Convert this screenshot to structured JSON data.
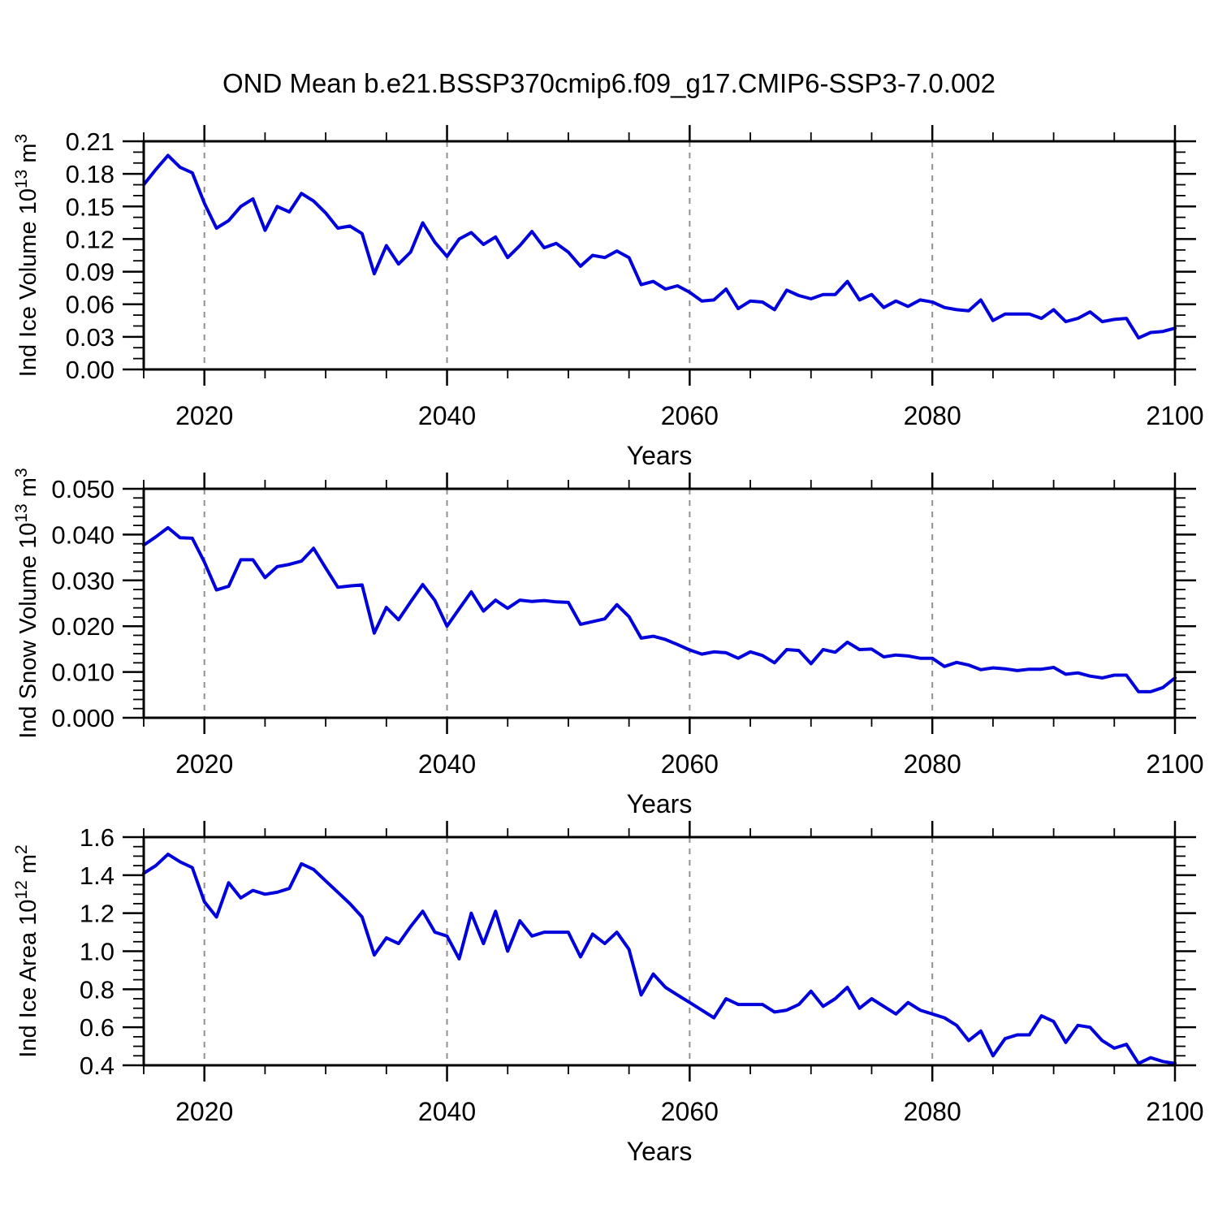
{
  "page": {
    "title": "OND Mean b.e21.BSSP370cmip6.f09_g17.CMIP6-SSP3-7.0.002",
    "background": "#ffffff"
  },
  "style": {
    "line_color": "#0000dd",
    "grid_color": "#909090",
    "axis_color": "#000000",
    "text_color": "#000000"
  },
  "chart_data": [
    {
      "type": "line",
      "id": "ice-volume",
      "xlabel": "Years",
      "ylabel": {
        "base": "Ind Ice Volume 10",
        "sup": "13",
        "unit": " m",
        "sup2": "3"
      },
      "x_start": 2015,
      "x_step": 1,
      "xlim": [
        2015,
        2100
      ],
      "xticks_major": [
        2020,
        2040,
        2060,
        2080,
        2100
      ],
      "xtick_labels": [
        "2020",
        "2040",
        "2060",
        "2080",
        "2100"
      ],
      "xtick_minor_step": 5,
      "grid_years": [
        2020,
        2040,
        2060,
        2080
      ],
      "ylim": [
        0.0,
        0.21
      ],
      "ytick_values": [
        0.0,
        0.03,
        0.06,
        0.09,
        0.12,
        0.15,
        0.18,
        0.21
      ],
      "ytick_labels": [
        "0.00",
        "0.03",
        "0.06",
        "0.09",
        "0.12",
        "0.15",
        "0.18",
        "0.21"
      ],
      "ytick_minor_step": 0.01,
      "grid": "vertical-dashed",
      "legend": "none",
      "series": [
        {
          "name": "Ind Ice Volume",
          "color": "#0000dd",
          "values": [
            0.17,
            0.184,
            0.197,
            0.186,
            0.181,
            0.153,
            0.13,
            0.137,
            0.15,
            0.157,
            0.128,
            0.15,
            0.145,
            0.162,
            0.155,
            0.144,
            0.13,
            0.132,
            0.125,
            0.088,
            0.114,
            0.097,
            0.108,
            0.135,
            0.117,
            0.104,
            0.12,
            0.126,
            0.115,
            0.122,
            0.103,
            0.114,
            0.127,
            0.112,
            0.116,
            0.108,
            0.095,
            0.105,
            0.103,
            0.109,
            0.103,
            0.078,
            0.081,
            0.074,
            0.077,
            0.071,
            0.063,
            0.064,
            0.074,
            0.056,
            0.063,
            0.062,
            0.055,
            0.073,
            0.068,
            0.065,
            0.069,
            0.069,
            0.081,
            0.064,
            0.069,
            0.057,
            0.063,
            0.058,
            0.064,
            0.062,
            0.057,
            0.055,
            0.054,
            0.064,
            0.045,
            0.051,
            0.051,
            0.051,
            0.047,
            0.055,
            0.044,
            0.047,
            0.053,
            0.044,
            0.046,
            0.047,
            0.029,
            0.034,
            0.035,
            0.038
          ]
        }
      ]
    },
    {
      "type": "line",
      "id": "snow-volume",
      "xlabel": "Years",
      "ylabel": {
        "base": "Ind Snow Volume 10",
        "sup": "13",
        "unit": " m",
        "sup2": "3"
      },
      "x_start": 2015,
      "x_step": 1,
      "xlim": [
        2015,
        2100
      ],
      "xticks_major": [
        2020,
        2040,
        2060,
        2080,
        2100
      ],
      "xtick_labels": [
        "2020",
        "2040",
        "2060",
        "2080",
        "2100"
      ],
      "xtick_minor_step": 5,
      "grid_years": [
        2020,
        2040,
        2060,
        2080
      ],
      "ylim": [
        0.0,
        0.05
      ],
      "ytick_values": [
        0.0,
        0.01,
        0.02,
        0.03,
        0.04,
        0.05
      ],
      "ytick_labels": [
        "0.000",
        "0.010",
        "0.020",
        "0.030",
        "0.040",
        "0.050"
      ],
      "ytick_minor_step": 0.002,
      "grid": "vertical-dashed",
      "legend": "none",
      "series": [
        {
          "name": "Ind Snow Volume",
          "color": "#0000dd",
          "values": [
            0.0377,
            0.0395,
            0.0415,
            0.0393,
            0.0392,
            0.034,
            0.0279,
            0.0287,
            0.0345,
            0.0345,
            0.0306,
            0.033,
            0.0335,
            0.0342,
            0.037,
            0.0327,
            0.0285,
            0.0288,
            0.029,
            0.0185,
            0.0241,
            0.0214,
            0.0253,
            0.0291,
            0.0256,
            0.02,
            0.0238,
            0.0275,
            0.0233,
            0.0257,
            0.0239,
            0.0257,
            0.0254,
            0.0256,
            0.0253,
            0.0252,
            0.0204,
            0.021,
            0.0216,
            0.0247,
            0.0221,
            0.0174,
            0.0178,
            0.0171,
            0.016,
            0.0148,
            0.0139,
            0.0144,
            0.0142,
            0.013,
            0.0144,
            0.0136,
            0.012,
            0.0149,
            0.0147,
            0.0118,
            0.0149,
            0.0143,
            0.0165,
            0.0149,
            0.015,
            0.0133,
            0.0137,
            0.0135,
            0.013,
            0.013,
            0.0112,
            0.0121,
            0.0115,
            0.0105,
            0.0109,
            0.0107,
            0.0103,
            0.0106,
            0.0106,
            0.011,
            0.0095,
            0.0098,
            0.0091,
            0.0087,
            0.0093,
            0.0093,
            0.0057,
            0.0057,
            0.0066,
            0.0087
          ]
        }
      ]
    },
    {
      "type": "line",
      "id": "ice-area",
      "xlabel": "Years",
      "ylabel": {
        "base": "Ind Ice Area 10",
        "sup": "12",
        "unit": " m",
        "sup2": "2"
      },
      "x_start": 2015,
      "x_step": 1,
      "xlim": [
        2015,
        2100
      ],
      "xticks_major": [
        2020,
        2040,
        2060,
        2080,
        2100
      ],
      "xtick_labels": [
        "2020",
        "2040",
        "2060",
        "2080",
        "2100"
      ],
      "xtick_minor_step": 5,
      "grid_years": [
        2020,
        2040,
        2060,
        2080
      ],
      "ylim": [
        0.4,
        1.6
      ],
      "ytick_values": [
        0.4,
        0.6,
        0.8,
        1.0,
        1.2,
        1.4,
        1.6
      ],
      "ytick_labels": [
        "0.4",
        "0.6",
        "0.8",
        "1.0",
        "1.2",
        "1.4",
        "1.6"
      ],
      "ytick_minor_step": 0.05,
      "grid": "vertical-dashed",
      "legend": "none",
      "series": [
        {
          "name": "Ind Ice Area",
          "color": "#0000dd",
          "values": [
            1.41,
            1.45,
            1.51,
            1.47,
            1.44,
            1.26,
            1.18,
            1.36,
            1.28,
            1.32,
            1.3,
            1.31,
            1.33,
            1.46,
            1.43,
            1.37,
            1.31,
            1.25,
            1.18,
            0.98,
            1.07,
            1.04,
            1.13,
            1.21,
            1.1,
            1.08,
            0.96,
            1.2,
            1.04,
            1.21,
            1.0,
            1.16,
            1.08,
            1.1,
            1.1,
            1.1,
            0.97,
            1.09,
            1.04,
            1.1,
            1.01,
            0.77,
            0.88,
            0.81,
            0.77,
            0.73,
            0.69,
            0.65,
            0.75,
            0.72,
            0.72,
            0.72,
            0.68,
            0.69,
            0.72,
            0.79,
            0.71,
            0.75,
            0.81,
            0.7,
            0.75,
            0.71,
            0.67,
            0.73,
            0.69,
            0.67,
            0.65,
            0.61,
            0.53,
            0.58,
            0.45,
            0.54,
            0.56,
            0.56,
            0.66,
            0.63,
            0.52,
            0.61,
            0.6,
            0.53,
            0.49,
            0.51,
            0.41,
            0.44,
            0.42,
            0.41
          ]
        }
      ]
    }
  ]
}
